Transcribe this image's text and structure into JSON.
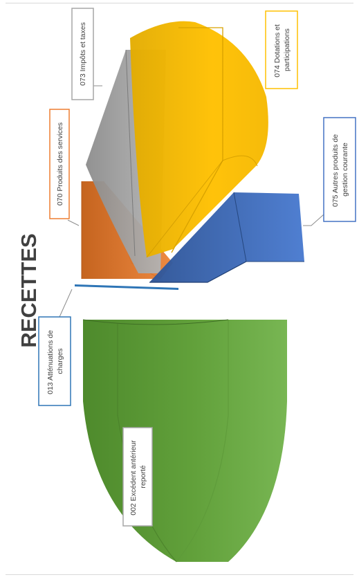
{
  "chart_data": {
    "type": "pie",
    "style": "3d-exploded",
    "orientation": "rotated-90-clockwise",
    "title": "RECETTES",
    "categories": [
      "002 Excédent antérieur reporté",
      "013 Atténuations de charges",
      "070 Produits des services",
      "073 Impôts et taxes",
      "074 Dotations et participations",
      "075 Autres produits de gestion courante"
    ],
    "values": [
      50.0,
      0.5,
      4.0,
      7.5,
      31.0,
      7.0
    ],
    "value_unit": "percent (estimated)",
    "colors": [
      "#70ad47",
      "#2e75b6",
      "#ed7d31",
      "#a5a5a5",
      "#ffc000",
      "#4472c4"
    ],
    "legend": "callout labels"
  }
}
